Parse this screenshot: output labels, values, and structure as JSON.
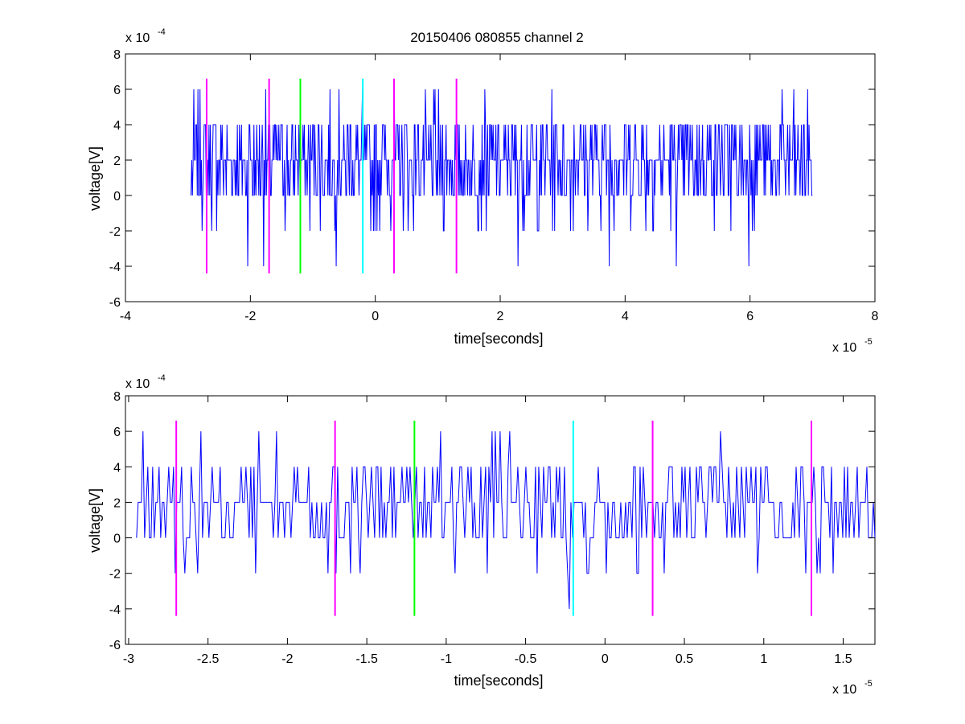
{
  "title": "20150406 080855 channel 2",
  "colors": {
    "signal": "#0000ff",
    "magenta": "#ff00ff",
    "green": "#00ff00",
    "cyan": "#00ffff",
    "axes": "#000000",
    "background": "#ffffff"
  },
  "chart_data": [
    {
      "type": "line",
      "title": "20150406 080855 channel 2",
      "xlabel": "time[seconds]",
      "ylabel": "voltage[V]",
      "xlim": [
        -4e-05,
        8e-05
      ],
      "ylim": [
        -0.0006,
        0.0008
      ],
      "x_multiplier_text": "x 10",
      "x_multiplier_exp": "-5",
      "y_multiplier_text": "x 10",
      "y_multiplier_exp": "-4",
      "xticks": [
        -4,
        -2,
        0,
        2,
        4,
        6,
        8
      ],
      "xtick_labels": [
        "-4",
        "-2",
        "0",
        "2",
        "4",
        "6",
        "8"
      ],
      "yticks": [
        -6,
        -4,
        -2,
        0,
        2,
        4,
        6,
        8
      ],
      "ytick_labels": [
        "-6",
        "-4",
        "-2",
        "0",
        "2",
        "4",
        "6",
        "8"
      ],
      "grid": false,
      "signal": {
        "x_range": [
          -2.95e-05,
          7e-05
        ],
        "levels": [
          -0.0004,
          -0.0002,
          0,
          0.0002,
          0.0004,
          0.0006
        ],
        "approx_points": 900,
        "peak_max": 0.0006,
        "peak_min": -0.0004
      },
      "markers": [
        {
          "x": -2.7e-05,
          "color": "magenta",
          "y_range": [
            -0.00044,
            0.00066
          ]
        },
        {
          "x": -1.7e-05,
          "color": "magenta",
          "y_range": [
            -0.00044,
            0.00066
          ]
        },
        {
          "x": -1.2e-05,
          "color": "green",
          "y_range": [
            -0.00044,
            0.00066
          ]
        },
        {
          "x": -2e-06,
          "color": "cyan",
          "y_range": [
            -0.00044,
            0.00066
          ]
        },
        {
          "x": 3e-06,
          "color": "magenta",
          "y_range": [
            -0.00044,
            0.00066
          ]
        },
        {
          "x": 1.3e-05,
          "color": "magenta",
          "y_range": [
            -0.00044,
            0.00066
          ]
        }
      ]
    },
    {
      "type": "line",
      "xlabel": "time[seconds]",
      "ylabel": "voltage[V]",
      "xlim": [
        -3.02e-05,
        1.7e-05
      ],
      "ylim": [
        -0.0006,
        0.0008
      ],
      "x_multiplier_text": "x 10",
      "x_multiplier_exp": "-5",
      "y_multiplier_text": "x 10",
      "y_multiplier_exp": "-4",
      "xticks": [
        -3,
        -2.5,
        -2,
        -1.5,
        -1,
        -0.5,
        0,
        0.5,
        1,
        1.5
      ],
      "xtick_labels": [
        "-3",
        "-2.5",
        "-2",
        "-1.5",
        "-1",
        "-0.5",
        "0",
        "0.5",
        "1",
        "1.5"
      ],
      "yticks": [
        -6,
        -4,
        -2,
        0,
        2,
        4,
        6,
        8
      ],
      "ytick_labels": [
        "-6",
        "-4",
        "-2",
        "0",
        "2",
        "4",
        "6",
        "8"
      ],
      "grid": false,
      "signal": {
        "x_range": [
          -2.95e-05,
          1.7e-05
        ],
        "levels": [
          -0.0004,
          -0.0002,
          0,
          0.0002,
          0.0004,
          0.0006
        ],
        "approx_points": 460,
        "peak_max": 0.0006,
        "peak_min": -0.0004
      },
      "markers": [
        {
          "x": -2.7e-05,
          "color": "magenta",
          "y_range": [
            -0.00044,
            0.00066
          ]
        },
        {
          "x": -1.7e-05,
          "color": "magenta",
          "y_range": [
            -0.00044,
            0.00066
          ]
        },
        {
          "x": -1.2e-05,
          "color": "green",
          "y_range": [
            -0.00044,
            0.00066
          ]
        },
        {
          "x": -2e-06,
          "color": "cyan",
          "y_range": [
            -0.00044,
            0.00066
          ]
        },
        {
          "x": 3e-06,
          "color": "magenta",
          "y_range": [
            -0.00044,
            0.00066
          ]
        },
        {
          "x": 1.3e-05,
          "color": "magenta",
          "y_range": [
            -0.00044,
            0.00066
          ]
        }
      ]
    }
  ]
}
